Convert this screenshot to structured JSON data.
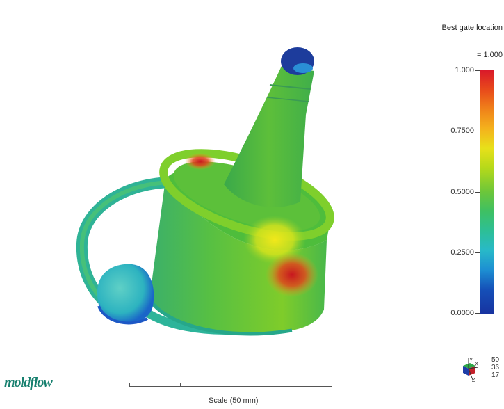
{
  "title": {
    "line1": "Best gate location",
    "line2": "= 1.000"
  },
  "legend": {
    "labels": [
      "1.000",
      "0.7500",
      "0.5000",
      "0.2500",
      "0.0000"
    ],
    "colors": {
      "high": "#d9192a",
      "mid": "#6cc63a",
      "low": "#1733a0"
    }
  },
  "axes": {
    "x_label": "X",
    "y_label": "Y",
    "z_label": "Z",
    "values": [
      "50",
      "36",
      "17"
    ]
  },
  "logo": {
    "text": "moldflow"
  },
  "scale": {
    "label": "Scale (50 mm)"
  }
}
